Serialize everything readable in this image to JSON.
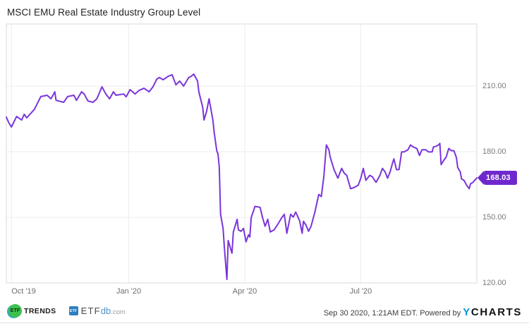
{
  "chart": {
    "title": "MSCI EMU Real Estate Industry Group Level"
  },
  "chart_data": {
    "type": "line",
    "title": "MSCI EMU Real Estate Industry Group Level",
    "grid": true,
    "legend": "none",
    "x_domain": [
      "2019-09-27",
      "2020-09-30"
    ],
    "ylim": [
      120,
      238.4
    ],
    "y_ticks": [
      {
        "label": "210.00",
        "value": 210
      },
      {
        "label": "180.00",
        "value": 180
      },
      {
        "label": "150.00",
        "value": 150
      },
      {
        "label": "120.00",
        "value": 120
      }
    ],
    "x_ticks": [
      {
        "label": "Oct '19",
        "date": "2019-10-01"
      },
      {
        "label": "Jan '20",
        "date": "2020-01-01"
      },
      {
        "label": "Apr '20",
        "date": "2020-04-01"
      },
      {
        "label": "Jul '20",
        "date": "2020-07-01"
      }
    ],
    "last_value": "168.03",
    "line_color": "#7A35D9",
    "badge_color": "#6F28CE",
    "series": [
      {
        "name": "MSCI EMU Real Estate Industry Group Level",
        "color": "#7A35D9",
        "points": [
          [
            "2019-09-27",
            195.8
          ],
          [
            "2019-09-29",
            193.2
          ],
          [
            "2019-10-01",
            191.3
          ],
          [
            "2019-10-05",
            196.1
          ],
          [
            "2019-10-09",
            194.5
          ],
          [
            "2019-10-11",
            197.1
          ],
          [
            "2019-10-13",
            195.5
          ],
          [
            "2019-10-19",
            199.4
          ],
          [
            "2019-10-24",
            205.2
          ],
          [
            "2019-10-29",
            205.8
          ],
          [
            "2019-11-01",
            204.2
          ],
          [
            "2019-11-04",
            207.4
          ],
          [
            "2019-11-05",
            203.5
          ],
          [
            "2019-11-11",
            202.6
          ],
          [
            "2019-11-14",
            205.2
          ],
          [
            "2019-11-19",
            205.8
          ],
          [
            "2019-11-21",
            203.5
          ],
          [
            "2019-11-25",
            207.4
          ],
          [
            "2019-11-27",
            206.4
          ],
          [
            "2019-11-30",
            203.2
          ],
          [
            "2019-12-04",
            202.6
          ],
          [
            "2019-12-07",
            204.2
          ],
          [
            "2019-12-11",
            209.7
          ],
          [
            "2019-12-14",
            206.4
          ],
          [
            "2019-12-17",
            204.2
          ],
          [
            "2019-12-20",
            207.4
          ],
          [
            "2019-12-22",
            205.8
          ],
          [
            "2019-12-28",
            206.4
          ],
          [
            "2019-12-30",
            205.1
          ],
          [
            "2020-01-02",
            208.4
          ],
          [
            "2020-01-06",
            206.4
          ],
          [
            "2020-01-09",
            208.0
          ],
          [
            "2020-01-13",
            209.0
          ],
          [
            "2020-01-17",
            207.4
          ],
          [
            "2020-01-20",
            209.7
          ],
          [
            "2020-01-23",
            213.2
          ],
          [
            "2020-01-25",
            213.9
          ],
          [
            "2020-01-28",
            212.9
          ],
          [
            "2020-02-01",
            214.5
          ],
          [
            "2020-02-04",
            215.2
          ],
          [
            "2020-02-07",
            210.6
          ],
          [
            "2020-02-10",
            212.3
          ],
          [
            "2020-02-13",
            210.0
          ],
          [
            "2020-02-17",
            213.9
          ],
          [
            "2020-02-19",
            214.5
          ],
          [
            "2020-02-21",
            215.5
          ],
          [
            "2020-02-24",
            212.3
          ],
          [
            "2020-02-25",
            207.4
          ],
          [
            "2020-02-28",
            200.3
          ],
          [
            "2020-02-29",
            194.5
          ],
          [
            "2020-03-02",
            198.3
          ],
          [
            "2020-03-04",
            204.2
          ],
          [
            "2020-03-07",
            194.5
          ],
          [
            "2020-03-08",
            189.0
          ],
          [
            "2020-03-10",
            180.5
          ],
          [
            "2020-03-11",
            178.9
          ],
          [
            "2020-03-12",
            172.8
          ],
          [
            "2020-03-13",
            151.4
          ],
          [
            "2020-03-15",
            144.9
          ],
          [
            "2020-03-16",
            136.2
          ],
          [
            "2020-03-18",
            121.6
          ],
          [
            "2020-03-19",
            139.4
          ],
          [
            "2020-03-21",
            135.5
          ],
          [
            "2020-03-22",
            133.6
          ],
          [
            "2020-03-23",
            143.3
          ],
          [
            "2020-03-26",
            149.1
          ],
          [
            "2020-03-27",
            144.3
          ],
          [
            "2020-03-29",
            143.6
          ],
          [
            "2020-03-31",
            144.9
          ],
          [
            "2020-04-02",
            138.8
          ],
          [
            "2020-04-04",
            142.0
          ],
          [
            "2020-04-05",
            141.0
          ],
          [
            "2020-04-06",
            149.8
          ],
          [
            "2020-04-09",
            155.0
          ],
          [
            "2020-04-13",
            154.6
          ],
          [
            "2020-04-15",
            149.8
          ],
          [
            "2020-04-17",
            145.9
          ],
          [
            "2020-04-19",
            149.1
          ],
          [
            "2020-04-21",
            143.3
          ],
          [
            "2020-04-24",
            144.3
          ],
          [
            "2020-04-27",
            146.9
          ],
          [
            "2020-04-30",
            149.8
          ],
          [
            "2020-05-02",
            151.4
          ],
          [
            "2020-05-04",
            142.7
          ],
          [
            "2020-05-07",
            151.4
          ],
          [
            "2020-05-09",
            150.1
          ],
          [
            "2020-05-11",
            152.4
          ],
          [
            "2020-05-14",
            148.5
          ],
          [
            "2020-05-16",
            142.7
          ],
          [
            "2020-05-17",
            148.2
          ],
          [
            "2020-05-19",
            146.5
          ],
          [
            "2020-05-21",
            143.6
          ],
          [
            "2020-05-23",
            145.9
          ],
          [
            "2020-05-26",
            152.4
          ],
          [
            "2020-05-29",
            160.5
          ],
          [
            "2020-05-31",
            159.5
          ],
          [
            "2020-06-02",
            168.6
          ],
          [
            "2020-06-04",
            183.1
          ],
          [
            "2020-06-06",
            180.9
          ],
          [
            "2020-06-07",
            177.6
          ],
          [
            "2020-06-10",
            171.8
          ],
          [
            "2020-06-13",
            167.9
          ],
          [
            "2020-06-16",
            172.4
          ],
          [
            "2020-06-18",
            170.2
          ],
          [
            "2020-06-20",
            169.2
          ],
          [
            "2020-06-23",
            163.1
          ],
          [
            "2020-06-26",
            163.7
          ],
          [
            "2020-06-29",
            164.7
          ],
          [
            "2020-07-01",
            167.9
          ],
          [
            "2020-07-03",
            172.4
          ],
          [
            "2020-07-05",
            166.9
          ],
          [
            "2020-07-08",
            169.2
          ],
          [
            "2020-07-10",
            168.6
          ],
          [
            "2020-07-13",
            166.0
          ],
          [
            "2020-07-16",
            169.2
          ],
          [
            "2020-07-18",
            172.4
          ],
          [
            "2020-07-20",
            170.8
          ],
          [
            "2020-07-22",
            167.9
          ],
          [
            "2020-07-24",
            170.8
          ],
          [
            "2020-07-26",
            175.0
          ],
          [
            "2020-07-27",
            176.7
          ],
          [
            "2020-07-29",
            171.8
          ],
          [
            "2020-07-31",
            171.8
          ],
          [
            "2020-08-02",
            179.9
          ],
          [
            "2020-08-04",
            179.9
          ],
          [
            "2020-08-07",
            180.9
          ],
          [
            "2020-08-09",
            183.1
          ],
          [
            "2020-08-11",
            182.2
          ],
          [
            "2020-08-14",
            181.5
          ],
          [
            "2020-08-16",
            178.3
          ],
          [
            "2020-08-18",
            180.9
          ],
          [
            "2020-08-21",
            180.9
          ],
          [
            "2020-08-23",
            179.9
          ],
          [
            "2020-08-26",
            179.9
          ],
          [
            "2020-08-27",
            182.2
          ],
          [
            "2020-08-29",
            182.5
          ],
          [
            "2020-08-31",
            183.1
          ],
          [
            "2020-09-01",
            183.8
          ],
          [
            "2020-09-02",
            174.1
          ],
          [
            "2020-09-04",
            176.0
          ],
          [
            "2020-09-06",
            177.6
          ],
          [
            "2020-09-08",
            181.5
          ],
          [
            "2020-09-10",
            180.5
          ],
          [
            "2020-09-12",
            180.5
          ],
          [
            "2020-09-14",
            177.3
          ],
          [
            "2020-09-15",
            172.8
          ],
          [
            "2020-09-17",
            170.8
          ],
          [
            "2020-09-18",
            167.6
          ],
          [
            "2020-09-20",
            166.9
          ],
          [
            "2020-09-22",
            164.7
          ],
          [
            "2020-09-24",
            163.1
          ],
          [
            "2020-09-25",
            165.3
          ],
          [
            "2020-09-27",
            166.0
          ],
          [
            "2020-09-30",
            168.03
          ]
        ]
      }
    ]
  },
  "footer": {
    "logos": {
      "etf_trends": {
        "circle_text": "ETF",
        "word": "TRENDS"
      },
      "etfdb": {
        "square_text": "ETF",
        "text_etf": "ETF",
        "text_db": "db",
        "text_com": ".com"
      }
    },
    "attribution": {
      "timestamp": "Sep 30 2020, 1:21AM EDT. Powered by",
      "ycharts_y": "Y",
      "ycharts_rest": "CHARTS"
    }
  }
}
